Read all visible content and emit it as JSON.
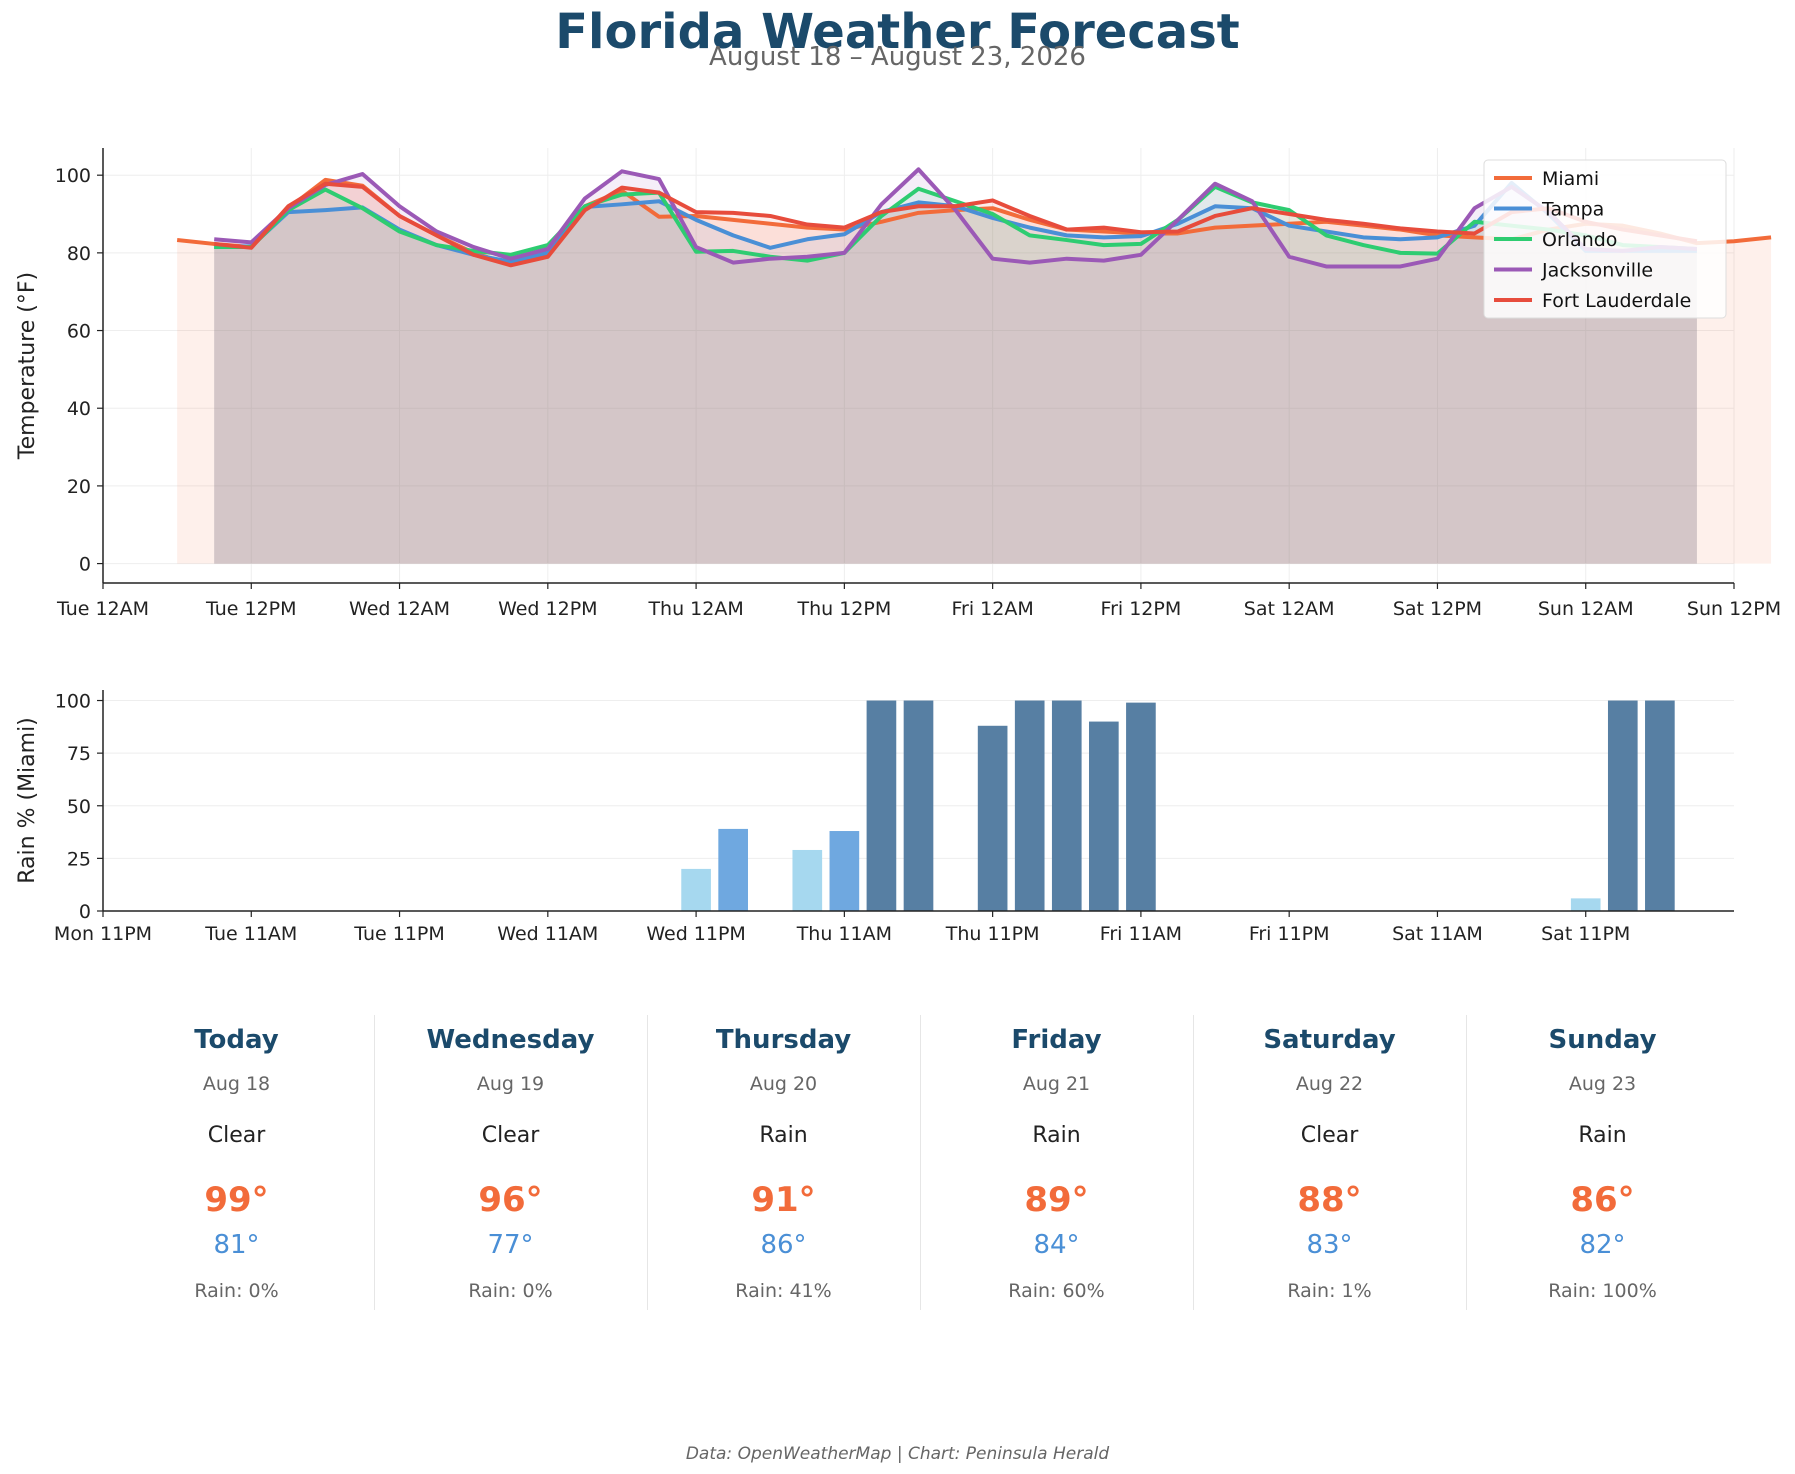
{
  "title": "Florida Weather Forecast",
  "subtitle": "August 18 – August 23, 2026",
  "source": "Data: OpenWeatherMap | Chart: Peninsula Herald",
  "colors": {
    "Miami": "#f26b3a",
    "Tampa": "#4a8fd6",
    "Orlando": "#2ecc71",
    "Jacksonville": "#9b59b6",
    "Fort Lauderdale": "#e74c3c",
    "rain_low": "#a6d8ef",
    "rain_mid": "#6fa8e0",
    "rain_high": "#577fa3",
    "hi_temp": "#f26b3a",
    "lo_temp": "#4a8fd6",
    "heading": "#1b4a6b"
  },
  "chart_data": [
    {
      "type": "line",
      "ylabel": "Temperature (°F)",
      "xlabel": "",
      "ylim": [
        -5,
        107
      ],
      "xlim_hours": [
        0,
        132
      ],
      "yticks": [
        0,
        20,
        40,
        60,
        80,
        100
      ],
      "xticks": [
        {
          "h": 0,
          "label": "Tue 12AM"
        },
        {
          "h": 12,
          "label": "Tue 12PM"
        },
        {
          "h": 24,
          "label": "Wed 12AM"
        },
        {
          "h": 36,
          "label": "Wed 12PM"
        },
        {
          "h": 48,
          "label": "Thu 12AM"
        },
        {
          "h": 60,
          "label": "Thu 12PM"
        },
        {
          "h": 72,
          "label": "Fri 12AM"
        },
        {
          "h": 84,
          "label": "Fri 12PM"
        },
        {
          "h": 96,
          "label": "Sat 12AM"
        },
        {
          "h": 108,
          "label": "Sat 12PM"
        },
        {
          "h": 120,
          "label": "Sun 12AM"
        },
        {
          "h": 132,
          "label": "Sun 12PM"
        }
      ],
      "grid": true,
      "legend": "top-right",
      "series": [
        {
          "name": "Miami",
          "start_hour": 6,
          "values": [
            83.3,
            82.3,
            81.5,
            91.5,
            98.8,
            97.3,
            89.5,
            84.5,
            80,
            77,
            79.5,
            92,
            96,
            89.3,
            89.5,
            88.5,
            87.5,
            86.5,
            86,
            88,
            90.3,
            91,
            91.5,
            88.5,
            86,
            85.5,
            85,
            85,
            86.5,
            87,
            87.5,
            88,
            87,
            86,
            84.5,
            84,
            83.5,
            86,
            87.5,
            87,
            85,
            82.5,
            83,
            84
          ]
        },
        {
          "name": "Tampa",
          "start_hour": 9,
          "values": [
            81.5,
            81.7,
            90.5,
            91,
            91.7,
            86,
            82,
            79.5,
            77.7,
            80,
            91.8,
            92.5,
            93.3,
            88.5,
            84.5,
            81.3,
            83.5,
            84.8,
            90.5,
            93,
            92,
            89,
            86.5,
            84.5,
            84,
            84.3,
            87.5,
            92,
            91.5,
            87,
            85.5,
            84,
            83.5,
            84,
            87,
            98,
            90,
            80.5,
            80.5,
            80.5,
            80.5
          ]
        },
        {
          "name": "Orlando",
          "start_hour": 9,
          "values": [
            81.5,
            81.5,
            91,
            96.3,
            91.5,
            85.5,
            82,
            80.5,
            79.5,
            82,
            92,
            95,
            95.5,
            80.3,
            80.5,
            79,
            78,
            80,
            89.5,
            96.5,
            93.3,
            90,
            84.5,
            83.3,
            82,
            82.3,
            88.5,
            97,
            93,
            91,
            84.5,
            82,
            80,
            79.8,
            88,
            87,
            86,
            84.5,
            82,
            81.5,
            81
          ]
        },
        {
          "name": "Jacksonville",
          "start_hour": 9,
          "values": [
            83.5,
            82.7,
            91.5,
            97.5,
            100.3,
            92,
            85.5,
            81.5,
            78.5,
            81,
            94,
            101,
            99,
            81.5,
            77.5,
            78.5,
            79,
            80,
            92.5,
            101.5,
            91,
            78.5,
            77.5,
            78.5,
            78,
            79.5,
            88.5,
            97.8,
            93.3,
            79,
            76.5,
            76.5,
            76.5,
            78.5,
            91.5,
            97,
            90.5,
            81,
            80.5,
            81.5,
            81
          ]
        },
        {
          "name": "Fort Lauderdale",
          "start_hour": 9,
          "values": [
            82.3,
            81.3,
            92,
            97.8,
            97,
            89.5,
            84.5,
            79.5,
            76.8,
            79,
            91,
            96.8,
            95.5,
            90.5,
            90.3,
            89.5,
            87.3,
            86.5,
            90.5,
            92,
            92,
            93.5,
            89.5,
            86,
            86.5,
            85.3,
            85.5,
            89.5,
            91.5,
            90,
            88.5,
            87.5,
            86.3,
            85.5,
            85,
            90.5,
            91.5,
            88,
            86,
            84.5,
            83
          ]
        }
      ]
    },
    {
      "type": "bar",
      "ylabel": "Rain % (Miami)",
      "xlabel": "",
      "ylim": [
        0,
        105
      ],
      "xlim_hours": [
        -1,
        131
      ],
      "yticks": [
        0,
        25,
        50,
        75,
        100
      ],
      "xticks": [
        {
          "h": -1,
          "label": "Mon 11PM"
        },
        {
          "h": 11,
          "label": "Tue 11AM"
        },
        {
          "h": 23,
          "label": "Tue 11PM"
        },
        {
          "h": 35,
          "label": "Wed 11AM"
        },
        {
          "h": 47,
          "label": "Wed 11PM"
        },
        {
          "h": 59,
          "label": "Thu 11AM"
        },
        {
          "h": 71,
          "label": "Thu 11PM"
        },
        {
          "h": 83,
          "label": "Fri 11AM"
        },
        {
          "h": 95,
          "label": "Fri 11PM"
        },
        {
          "h": 107,
          "label": "Sat 11AM"
        },
        {
          "h": 119,
          "label": "Sat 11PM"
        }
      ],
      "grid": true,
      "bars": [
        {
          "h": 47,
          "value": 20
        },
        {
          "h": 50,
          "value": 39
        },
        {
          "h": 56,
          "value": 29
        },
        {
          "h": 59,
          "value": 38
        },
        {
          "h": 62,
          "value": 100
        },
        {
          "h": 65,
          "value": 100
        },
        {
          "h": 71,
          "value": 88
        },
        {
          "h": 74,
          "value": 100
        },
        {
          "h": 77,
          "value": 100
        },
        {
          "h": 80,
          "value": 90
        },
        {
          "h": 83,
          "value": 99
        },
        {
          "h": 119,
          "value": 6
        },
        {
          "h": 122,
          "value": 100
        },
        {
          "h": 125,
          "value": 100
        }
      ]
    }
  ],
  "forecast": [
    {
      "day": "Today",
      "date": "Aug 18",
      "condition": "Clear",
      "high": "99°",
      "low": "81°",
      "rain": "Rain: 0%"
    },
    {
      "day": "Wednesday",
      "date": "Aug 19",
      "condition": "Clear",
      "high": "96°",
      "low": "77°",
      "rain": "Rain: 0%"
    },
    {
      "day": "Thursday",
      "date": "Aug 20",
      "condition": "Rain",
      "high": "91°",
      "low": "86°",
      "rain": "Rain: 41%"
    },
    {
      "day": "Friday",
      "date": "Aug 21",
      "condition": "Rain",
      "high": "89°",
      "low": "84°",
      "rain": "Rain: 60%"
    },
    {
      "day": "Saturday",
      "date": "Aug 22",
      "condition": "Clear",
      "high": "88°",
      "low": "83°",
      "rain": "Rain: 1%"
    },
    {
      "day": "Sunday",
      "date": "Aug 23",
      "condition": "Rain",
      "high": "86°",
      "low": "82°",
      "rain": "Rain: 100%"
    }
  ]
}
